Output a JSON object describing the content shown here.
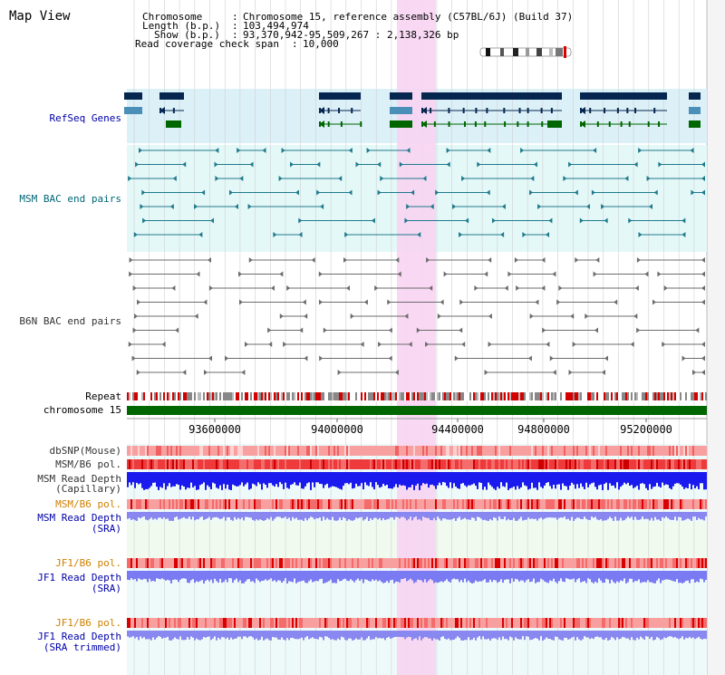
{
  "title": "Map View",
  "header": {
    "chromosome_label": "Chromosome",
    "chromosome_value": "Chromosome 15, reference assembly (C57BL/6J) (Build 37)",
    "length_label": "Length (b.p.)",
    "length_value": "103,494,974",
    "show_label": "Show (b.p.)",
    "show_value": "93,370,942-95,509,267 : 2,138,326 bp",
    "span_label": "Read coverage check span",
    "span_value": "10,000"
  },
  "tracks": {
    "refseq": "RefSeq Genes",
    "msm_bac": "MSM BAC end pairs",
    "b6n_bac": "B6N BAC end pairs",
    "repeat": "Repeat",
    "chromosome": "chromosome 15",
    "dbsnp": "dbSNP(Mouse)",
    "msm_b6_pol": "MSM/B6 pol.",
    "msm_depth_cap_1": "MSM Read Depth",
    "msm_depth_cap_2": "(Capillary)",
    "msm_b6_pol_2": "MSM/B6 pol.",
    "msm_depth_sra_1": "MSM Read Depth",
    "msm_depth_sra_2": "(SRA)",
    "jf1_b6_pol": "JF1/B6 pol.",
    "jf1_depth_1": "JF1 Read Depth",
    "jf1_depth_2": "(SRA)",
    "jf1_b6_pol_2": "JF1/B6 pol.",
    "jf1_trim_1": "JF1 Read Depth",
    "jf1_trim_2": "(SRA trimmed)"
  },
  "axis": {
    "ticks": [
      "93600000",
      "94000000",
      "94400000",
      "94800000",
      "95200000"
    ]
  },
  "colors": {
    "label_gray": "#333333",
    "label_blue": "#0000aa",
    "label_teal": "#006677",
    "label_orange": "#d08000",
    "gene_dark": "#06264f",
    "gene_steel": "#4a8fb8",
    "gene_green": "#006600",
    "highlight": "#f7d4f2",
    "refseq_bg": "#dcf0f8",
    "msm_bg": "#e4f8f8",
    "chrom_bar": "#006600",
    "depth_blue": "#1a1aee",
    "depth_light": "#8888f0"
  },
  "icons": {
    "ideogram": "chromosome-ideogram-icon",
    "end_marker": "bac-end-triangle-icon"
  }
}
